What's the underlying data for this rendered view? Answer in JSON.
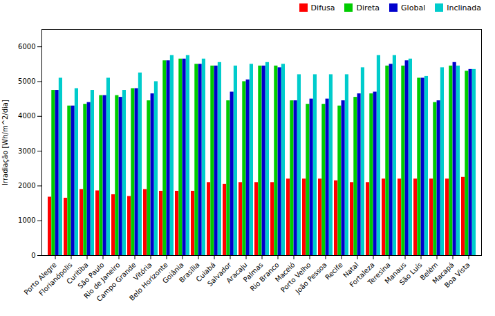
{
  "chart_data": {
    "type": "bar",
    "ylabel": "Irradiação [Wh/m^2/dia]",
    "categories": [
      "Porto Alegre",
      "Florianópolis",
      "Curitiba",
      "São Paulo",
      "Rio de Janeiro",
      "Campo Grande",
      "Vitória",
      "Belo Horizonte",
      "Goiânia",
      "Brasília",
      "Cuiabá",
      "Salvador",
      "Aracaju",
      "Palmas",
      "Rio Branco",
      "Maceió",
      "Porto Velho",
      "João Pessoa",
      "Recife",
      "Natal",
      "Fortaleza",
      "Teresina",
      "Manaus",
      "São Luís",
      "Belém",
      "Macapá",
      "Boa Vista"
    ],
    "series": [
      {
        "name": "Difusa",
        "color": "#ff0000",
        "values": [
          1680,
          1650,
          1900,
          1860,
          1750,
          1700,
          1900,
          1850,
          1850,
          1850,
          2100,
          2050,
          2100,
          2100,
          2100,
          2200,
          2200,
          2200,
          2150,
          2100,
          2100,
          2200,
          2200,
          2200,
          2200,
          2200,
          2250
        ]
      },
      {
        "name": "Direta",
        "color": "#00cc00",
        "values": [
          4750,
          4300,
          4350,
          4600,
          4600,
          4800,
          4450,
          5600,
          5650,
          5500,
          5450,
          4450,
          5000,
          5450,
          5450,
          4450,
          4350,
          4350,
          4300,
          4550,
          4650,
          5450,
          5450,
          5100,
          4400,
          5450,
          5300
        ]
      },
      {
        "name": "Global",
        "color": "#0000cc",
        "values": [
          4750,
          4300,
          4400,
          4600,
          4550,
          4800,
          4650,
          5600,
          5650,
          5500,
          5450,
          4700,
          5050,
          5450,
          5400,
          4450,
          4500,
          4500,
          4450,
          4650,
          4700,
          5500,
          5600,
          5100,
          4450,
          5550,
          5350
        ]
      },
      {
        "name": "Inclinada",
        "color": "#00cccc",
        "values": [
          5100,
          4800,
          4750,
          5100,
          4750,
          5250,
          5000,
          5750,
          5750,
          5650,
          5550,
          5450,
          5500,
          5550,
          5500,
          5200,
          5200,
          5200,
          5200,
          5400,
          5750,
          5750,
          5650,
          5150,
          5400,
          5450,
          5350
        ]
      }
    ],
    "ylim": [
      0,
      6500
    ],
    "yticks": [
      0,
      1000,
      2000,
      3000,
      4000,
      5000,
      6000
    ],
    "legend": "upper right",
    "grid": false
  }
}
